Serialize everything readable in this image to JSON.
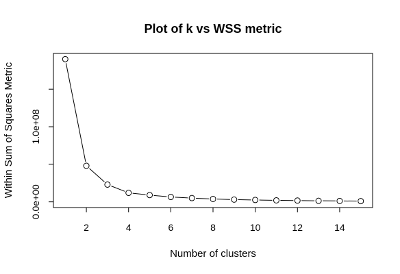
{
  "chart_data": {
    "type": "line",
    "title": "Plot of k vs WSS metric",
    "xlabel": "Number of clusters",
    "ylabel": "Within Sum of Squares Metric",
    "x": [
      1,
      2,
      3,
      4,
      5,
      6,
      7,
      8,
      9,
      10,
      11,
      12,
      13,
      14,
      15
    ],
    "series": [
      {
        "values": [
          190000000,
          48000000,
          23000000,
          12000000,
          9000000,
          6500000,
          5000000,
          3800000,
          3000000,
          2500000,
          2000000,
          1700000,
          1400000,
          1200000,
          1000000
        ]
      }
    ],
    "xlim": [
      0.44,
      15.56
    ],
    "ylim": [
      -7600000,
      197600000
    ],
    "x_ticks": [
      2,
      4,
      6,
      8,
      10,
      12,
      14
    ],
    "x_tick_labels": [
      "2",
      "4",
      "6",
      "8",
      "10",
      "12",
      "14"
    ],
    "y_ticks": [
      0,
      50000000,
      100000000,
      150000000
    ],
    "y_tick_labels": [
      "0.0e+00",
      "",
      "1.0e+08",
      ""
    ],
    "grid": false,
    "line_color": "#000000",
    "marker": "open-circle"
  }
}
